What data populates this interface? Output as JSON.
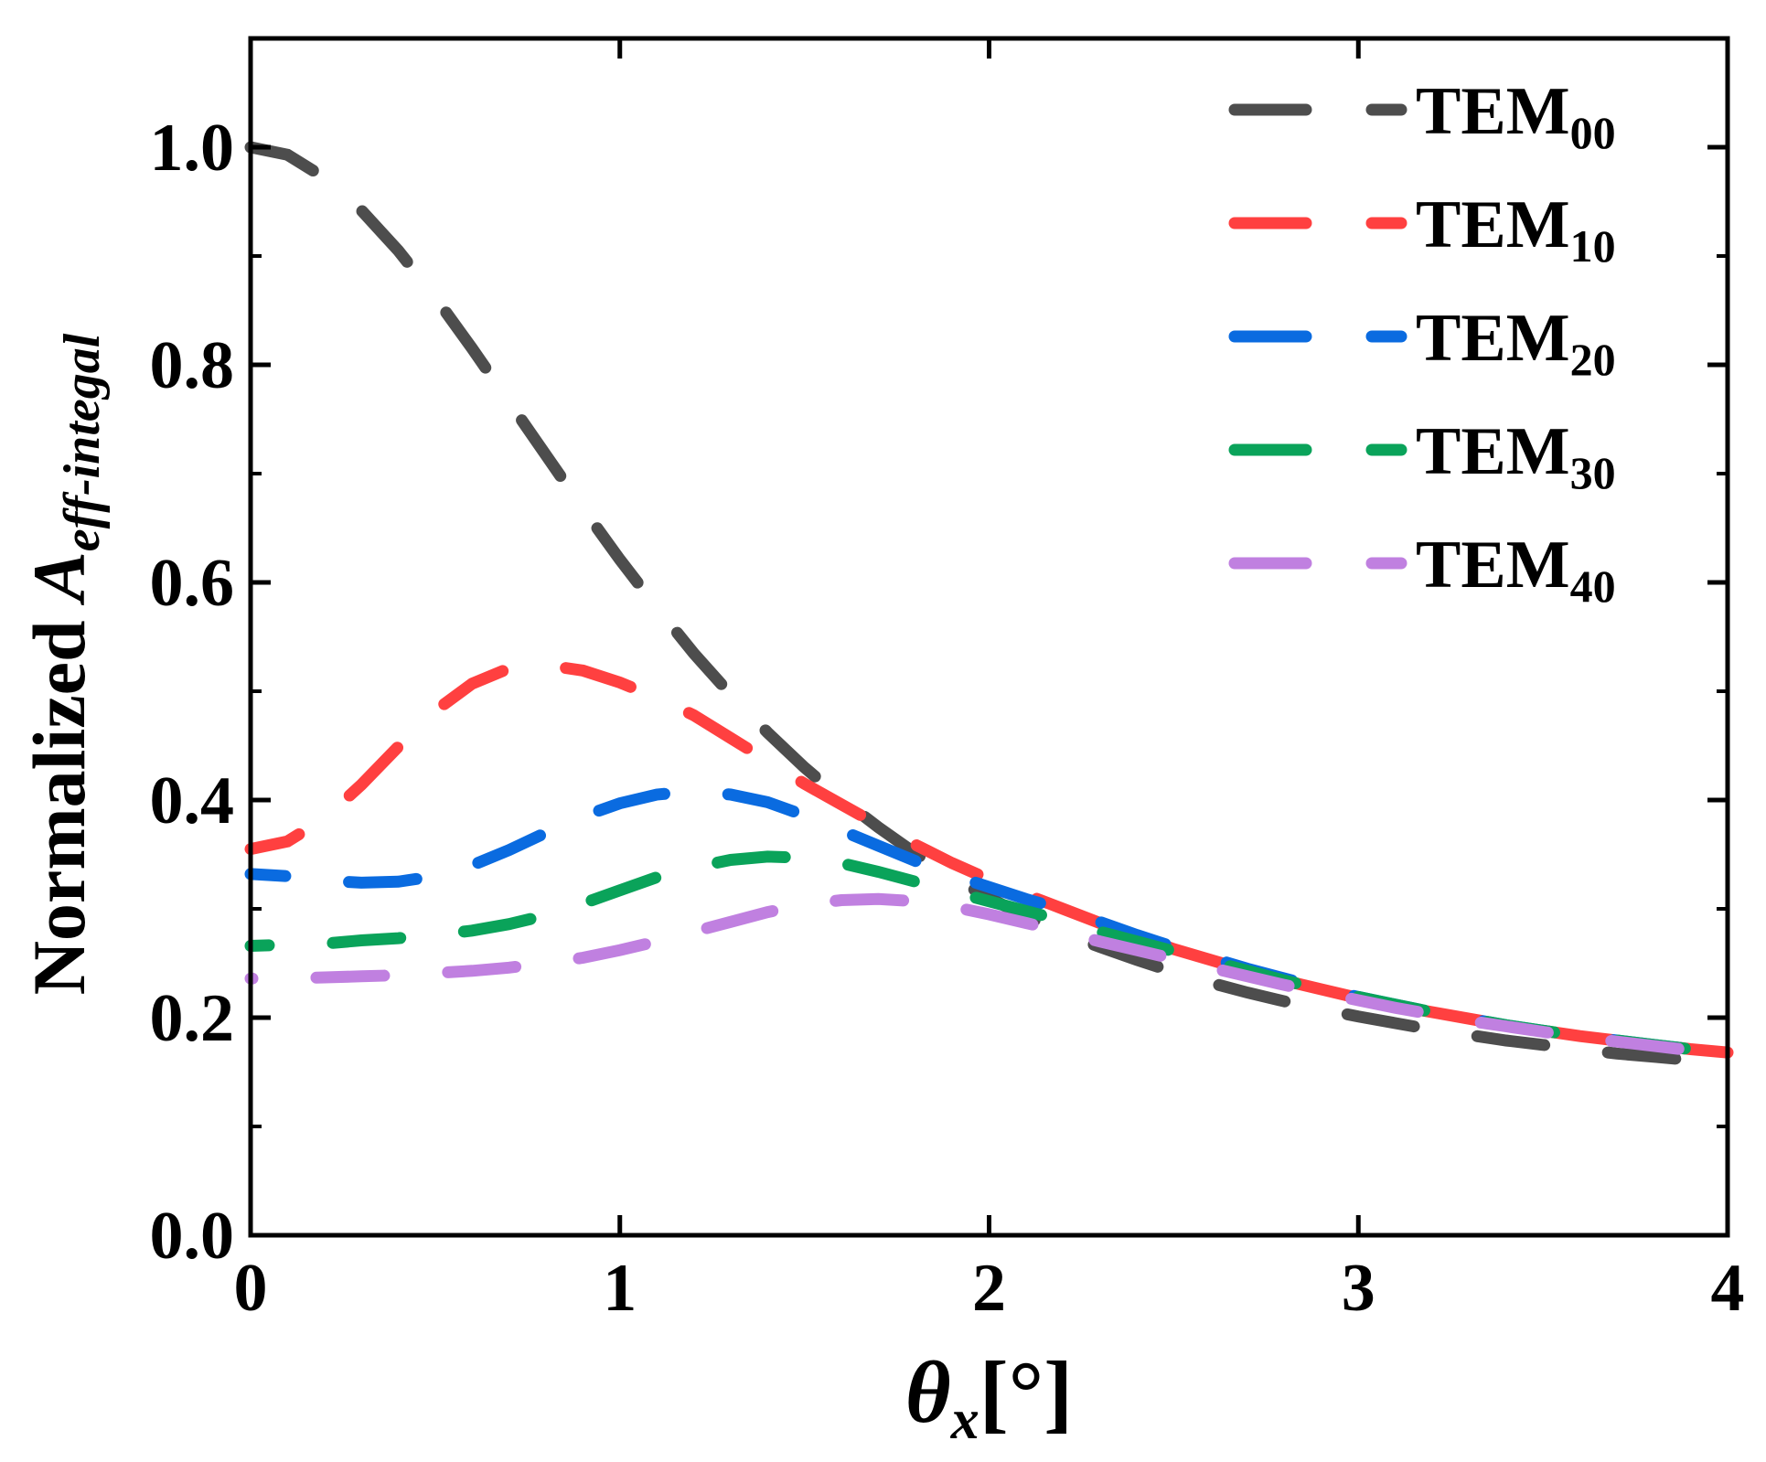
{
  "chart_data": {
    "type": "line",
    "title": "",
    "xlabel": {
      "main": "θ",
      "sub": "x",
      "unit": "[°]"
    },
    "ylabel": {
      "prefix": "Normalized ",
      "main": "A",
      "sub": "eff-integal"
    },
    "xlim": [
      0,
      4
    ],
    "ylim": [
      0,
      1.1
    ],
    "xticks": [
      0,
      1,
      2,
      3,
      4
    ],
    "xtick_labels": [
      "0",
      "1",
      "2",
      "3",
      "4"
    ],
    "yticks": [
      0.0,
      0.2,
      0.4,
      0.6,
      0.8,
      1.0
    ],
    "ytick_labels": [
      "0.0",
      "0.2",
      "0.4",
      "0.6",
      "0.8",
      "1.0"
    ],
    "legend_position": "top-right",
    "grid": false,
    "x": [
      0,
      0.1,
      0.2,
      0.3,
      0.4,
      0.5,
      0.6,
      0.7,
      0.8,
      0.9,
      1.0,
      1.1,
      1.2,
      1.3,
      1.4,
      1.5,
      1.6,
      1.7,
      1.8,
      1.9,
      2.0,
      2.1,
      2.2,
      2.3,
      2.4,
      2.5,
      2.6,
      2.7,
      2.8,
      2.9,
      3.0,
      3.1,
      3.2,
      3.3,
      3.4,
      3.5,
      3.6,
      3.7,
      3.8,
      3.9,
      4.0
    ],
    "series": [
      {
        "name": "TEM",
        "sub": "00",
        "color": "#4d4d4d",
        "values": [
          1.0,
          0.993,
          0.972,
          0.942,
          0.905,
          0.862,
          0.815,
          0.766,
          0.717,
          0.668,
          0.621,
          0.577,
          0.535,
          0.497,
          0.462,
          0.43,
          0.401,
          0.375,
          0.351,
          0.329,
          0.31,
          0.293,
          0.278,
          0.265,
          0.253,
          0.242,
          0.232,
          0.223,
          0.215,
          0.208,
          0.201,
          0.195,
          0.189,
          0.184,
          0.179,
          0.175,
          0.171,
          0.167,
          0.164,
          0.161,
          0.158
        ]
      },
      {
        "name": "TEM",
        "sub": "10",
        "color": "#ff4040",
        "values": [
          0.355,
          0.362,
          0.383,
          0.414,
          0.449,
          0.482,
          0.507,
          0.521,
          0.524,
          0.519,
          0.508,
          0.494,
          0.478,
          0.457,
          0.436,
          0.415,
          0.396,
          0.377,
          0.359,
          0.342,
          0.327,
          0.313,
          0.3,
          0.287,
          0.275,
          0.263,
          0.253,
          0.243,
          0.234,
          0.226,
          0.218,
          0.211,
          0.205,
          0.199,
          0.193,
          0.188,
          0.183,
          0.179,
          0.175,
          0.171,
          0.168
        ]
      },
      {
        "name": "TEM",
        "sub": "20",
        "color": "#0a6be0",
        "values": [
          0.332,
          0.33,
          0.326,
          0.324,
          0.325,
          0.33,
          0.34,
          0.354,
          0.37,
          0.385,
          0.397,
          0.405,
          0.408,
          0.405,
          0.398,
          0.386,
          0.372,
          0.358,
          0.344,
          0.331,
          0.32,
          0.309,
          0.299,
          0.288,
          0.276,
          0.265,
          0.255,
          0.245,
          0.236,
          0.227,
          0.219,
          0.212,
          0.205,
          0.199,
          0.193,
          0.188,
          0.183,
          0.179,
          0.175,
          0.171,
          0.168
        ]
      },
      {
        "name": "TEM",
        "sub": "30",
        "color": "#0aa35a",
        "values": [
          0.266,
          0.267,
          0.268,
          0.271,
          0.273,
          0.276,
          0.28,
          0.286,
          0.294,
          0.305,
          0.317,
          0.329,
          0.338,
          0.345,
          0.348,
          0.347,
          0.342,
          0.334,
          0.325,
          0.316,
          0.307,
          0.298,
          0.289,
          0.279,
          0.27,
          0.261,
          0.252,
          0.243,
          0.234,
          0.226,
          0.219,
          0.212,
          0.205,
          0.199,
          0.193,
          0.188,
          0.183,
          0.179,
          0.175,
          0.171,
          0.168
        ]
      },
      {
        "name": "TEM",
        "sub": "40",
        "color": "#c080e0",
        "values": [
          0.236,
          0.236,
          0.237,
          0.238,
          0.239,
          0.241,
          0.243,
          0.246,
          0.25,
          0.255,
          0.262,
          0.27,
          0.279,
          0.288,
          0.297,
          0.304,
          0.308,
          0.309,
          0.307,
          0.302,
          0.295,
          0.287,
          0.279,
          0.27,
          0.262,
          0.254,
          0.246,
          0.238,
          0.23,
          0.223,
          0.216,
          0.209,
          0.203,
          0.197,
          0.192,
          0.187,
          0.182,
          0.178,
          0.174,
          0.17,
          0.167
        ]
      }
    ]
  }
}
